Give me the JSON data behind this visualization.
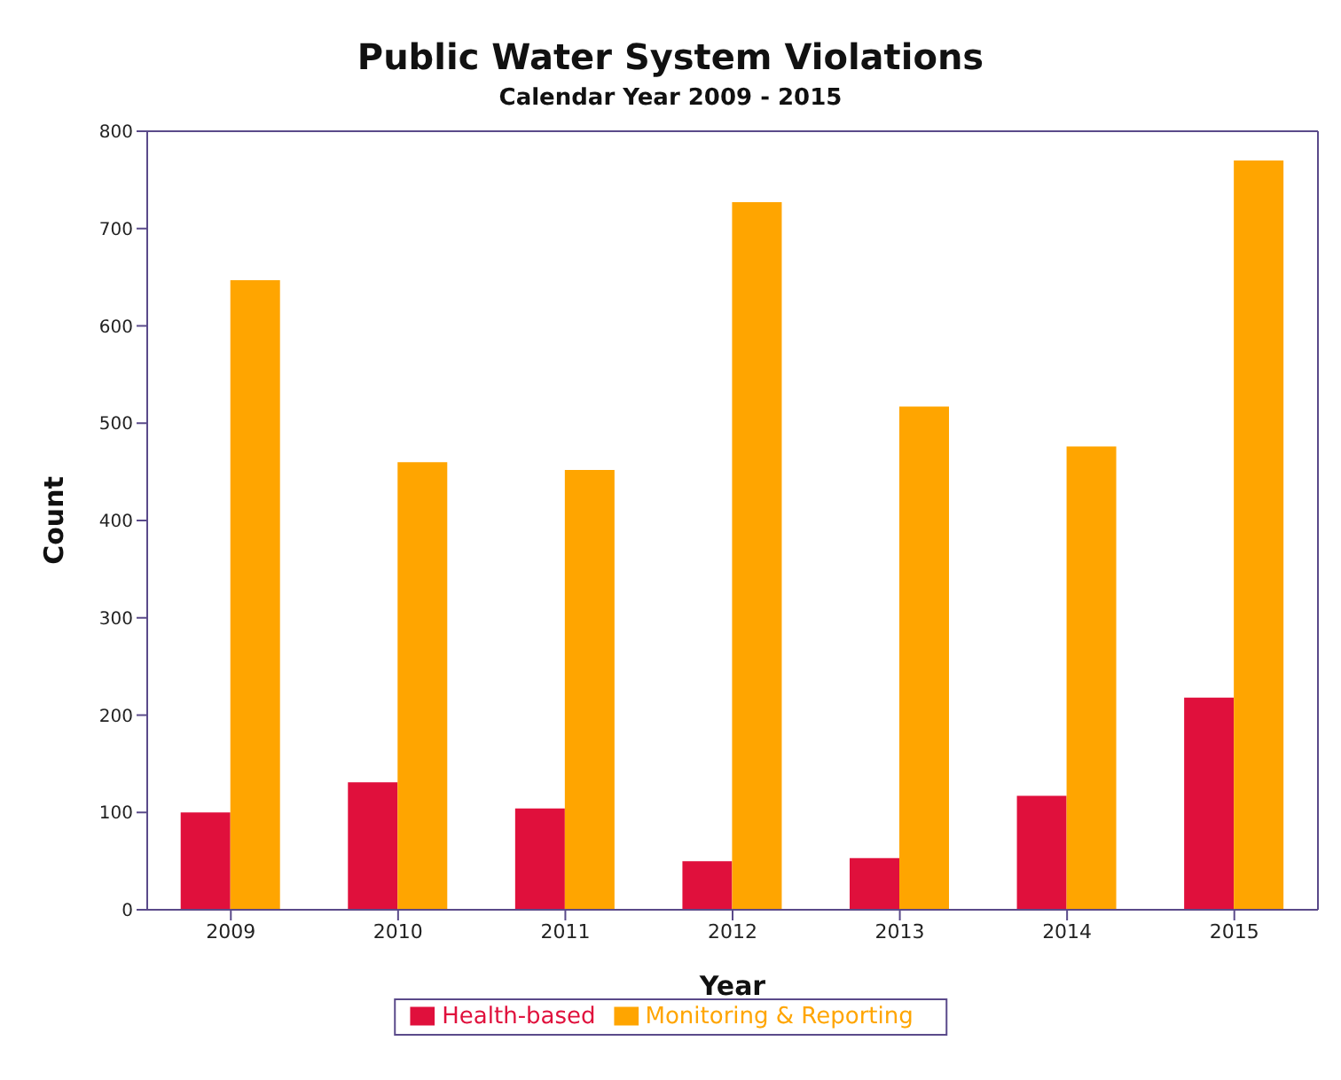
{
  "chart_data": {
    "type": "bar",
    "title": "Public Water System Violations",
    "subtitle": "Calendar Year 2009 - 2015",
    "xlabel": "Year",
    "ylabel": "Count",
    "categories": [
      "2009",
      "2010",
      "2011",
      "2012",
      "2013",
      "2014",
      "2015"
    ],
    "series": [
      {
        "name": "Health-based",
        "color": "#e0103c",
        "values": [
          100,
          131,
          104,
          50,
          53,
          117,
          218
        ]
      },
      {
        "name": "Monitoring & Reporting",
        "color": "#ffa500",
        "values": [
          647,
          460,
          452,
          727,
          517,
          476,
          770
        ]
      }
    ],
    "ylim": [
      0,
      800
    ],
    "yticks": [
      0,
      100,
      200,
      300,
      400,
      500,
      600,
      700,
      800
    ],
    "grid": false,
    "legend": "bottom"
  }
}
